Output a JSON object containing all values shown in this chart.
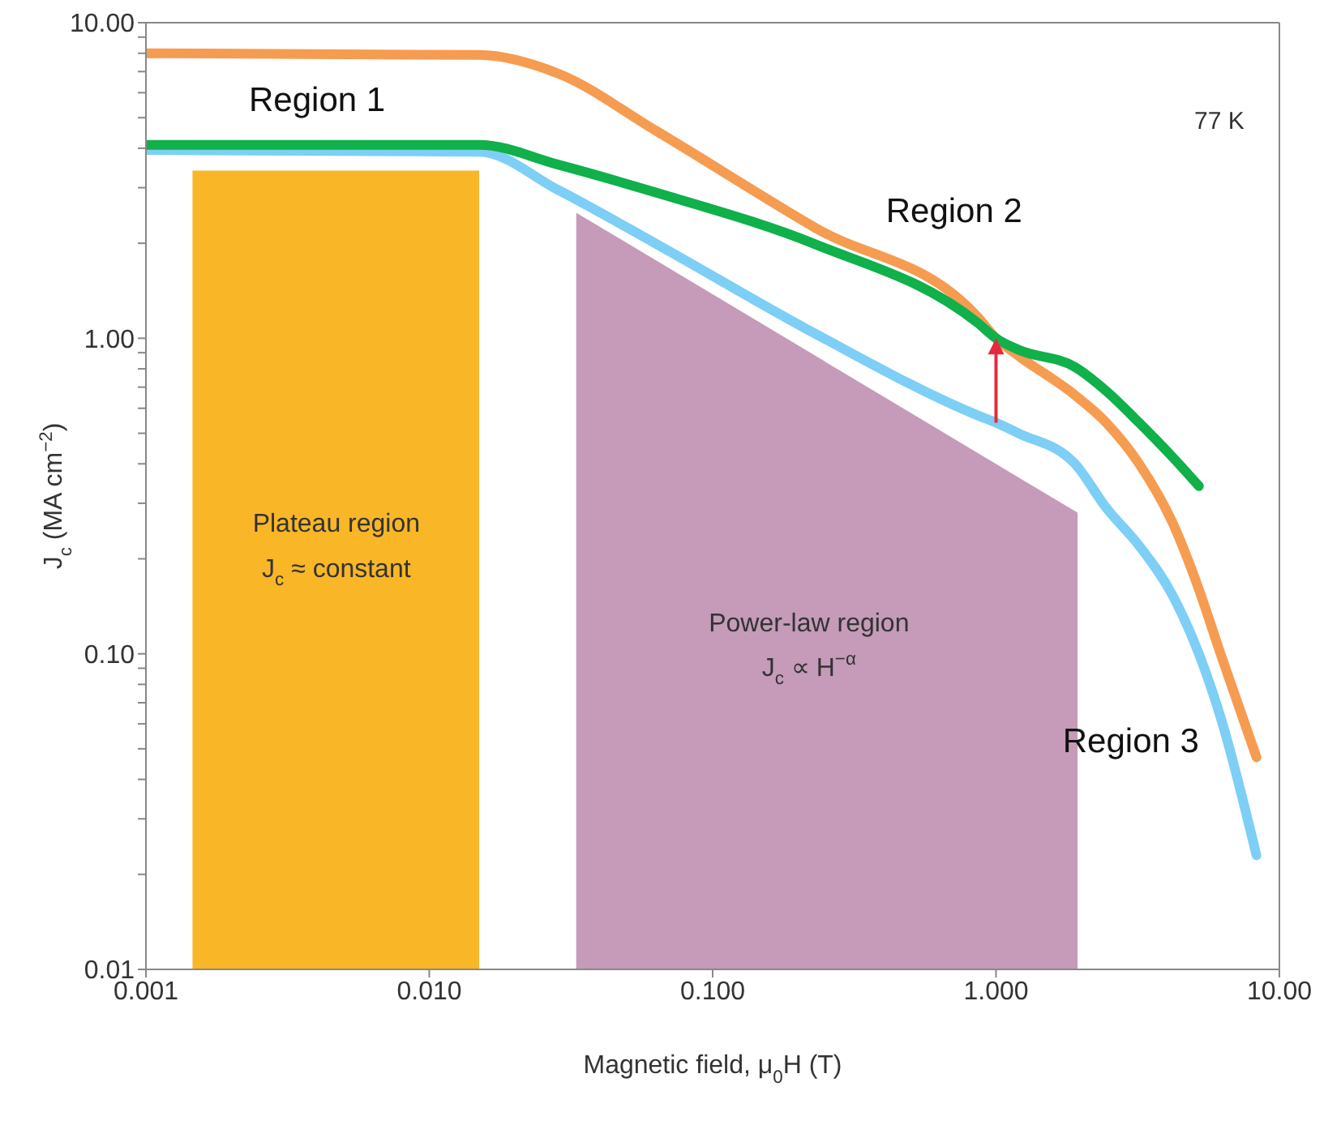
{
  "chart_data": {
    "type": "line",
    "xlabel": "Magnetic field, μ$_{0}$H (T)",
    "ylabel": "J$_{c}$ (MA cm$^{−2}$)",
    "log": "xy",
    "x": [
      0.001,
      0.015,
      0.0285,
      0.0627,
      0.232,
      0.86,
      1.0,
      1.2,
      1.9,
      2.45,
      3.2,
      4.2,
      5.2,
      6.2,
      8.3
    ],
    "series": [
      {
        "type": "area",
        "color": "#f9b626",
        "x": [
          0.00146,
          0.015
        ],
        "values": [
          3.4,
          3.4
        ]
      },
      {
        "type": "area",
        "color": "#c59bb9",
        "x": [
          0.033,
          1.94
        ],
        "values": [
          2.5,
          0.28
        ]
      },
      {
        "color": "#f59c51",
        "values": [
          8,
          7.9,
          6.9,
          4.56,
          2.23,
          1.17,
          1.0,
          0.88,
          0.66,
          0.54,
          0.4,
          0.26,
          0.16,
          0.1,
          0.047
        ]
      },
      {
        "color": "#7dcff5",
        "values": [
          3.95,
          3.9,
          2.95,
          2.0,
          1.03,
          0.57,
          0.54,
          0.5,
          0.4,
          0.29,
          0.22,
          0.153,
          0.1,
          0.063,
          0.023
        ]
      },
      {
        "color": "#10b04a",
        "values": [
          4.1,
          4.1,
          3.55,
          2.9,
          1.98,
          1.12,
          1.0,
          0.92,
          0.81,
          0.68,
          0.54,
          0.42,
          0.34,
          null,
          null
        ]
      }
    ],
    "xlim": [
      0.001,
      10
    ],
    "xticks": [
      {
        "value": 0.001,
        "label": "0.001"
      },
      {
        "value": 0.01,
        "label": "0.010"
      },
      {
        "value": 0.1,
        "label": "0.100"
      },
      {
        "value": 1,
        "label": "1.000"
      },
      {
        "value": 10,
        "label": "10.00"
      }
    ],
    "ylim": [
      0.01,
      10
    ],
    "yticks": [
      {
        "value": 0.01,
        "label": "0.01"
      },
      {
        "value": 0.02,
        "label": null
      },
      {
        "value": 0.03,
        "label": null
      },
      {
        "value": 0.04,
        "label": null
      },
      {
        "value": 0.05,
        "label": null
      },
      {
        "value": 0.06,
        "label": null
      },
      {
        "value": 0.07,
        "label": null
      },
      {
        "value": 0.08,
        "label": null
      },
      {
        "value": 0.09,
        "label": null
      },
      {
        "value": 0.1,
        "label": "0.10"
      },
      {
        "value": 0.2,
        "label": null
      },
      {
        "value": 0.3,
        "label": null
      },
      {
        "value": 0.4,
        "label": null
      },
      {
        "value": 0.5,
        "label": null
      },
      {
        "value": 0.6,
        "label": null
      },
      {
        "value": 0.7,
        "label": null
      },
      {
        "value": 0.8,
        "label": null
      },
      {
        "value": 0.9,
        "label": null
      },
      {
        "value": 1,
        "label": "1.00"
      },
      {
        "value": 2,
        "label": null
      },
      {
        "value": 3,
        "label": null
      },
      {
        "value": 4,
        "label": null
      },
      {
        "value": 5,
        "label": null
      },
      {
        "value": 6,
        "label": null
      },
      {
        "value": 7,
        "label": null
      },
      {
        "value": 8,
        "label": null
      },
      {
        "value": 9,
        "label": null
      },
      {
        "value": 10,
        "label": "10.00"
      }
    ],
    "annotations": [
      "Region 1",
      "Region 2",
      "Region 3",
      "77 K",
      "Plateau region",
      "J$_{c}$ ≈ constant",
      "Power-law region",
      "J$_{c}$ ∝ H$^{−α}$"
    ]
  }
}
